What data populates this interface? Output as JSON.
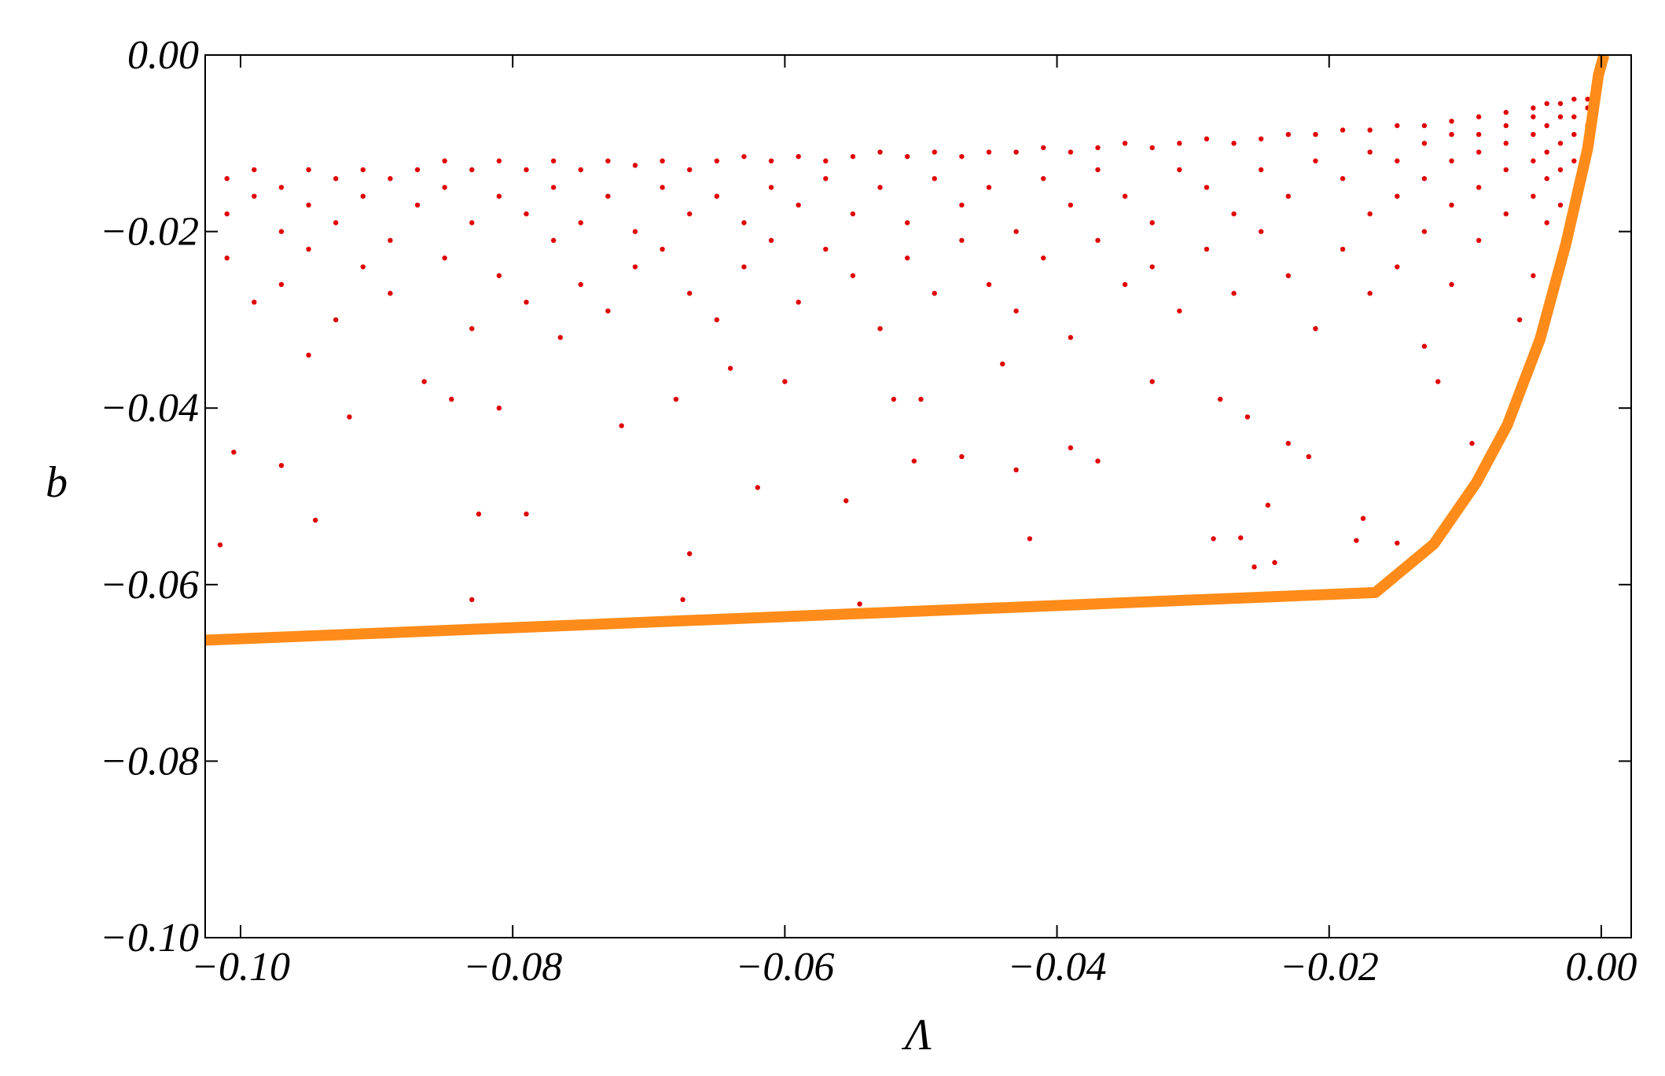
{
  "chart_data": {
    "type": "scatter",
    "x_label": "Λ",
    "y_label": "b",
    "xlim": [
      -0.1026,
      0.0022
    ],
    "ylim": [
      -0.1,
      0
    ],
    "xticks": [
      {
        "value": -0.1,
        "label": "−0.10"
      },
      {
        "value": -0.08,
        "label": "−0.08"
      },
      {
        "value": -0.06,
        "label": "−0.06"
      },
      {
        "value": -0.04,
        "label": "−0.04"
      },
      {
        "value": -0.02,
        "label": "−0.02"
      },
      {
        "value": 0,
        "label": "0.00"
      }
    ],
    "yticks": [
      {
        "value": -0.1,
        "label": "−0.10"
      },
      {
        "value": -0.08,
        "label": "−0.08"
      },
      {
        "value": -0.06,
        "label": "−0.06"
      },
      {
        "value": -0.04,
        "label": "−0.04"
      },
      {
        "value": -0.02,
        "label": "−0.02"
      },
      {
        "value": 0,
        "label": "0.00"
      }
    ],
    "series": [
      {
        "type": "scatter",
        "color": "#e00000",
        "x": [
          -0.101,
          -0.101,
          -0.101,
          -0.099,
          -0.099,
          -0.099,
          -0.097,
          -0.097,
          -0.097,
          -0.095,
          -0.095,
          -0.095,
          -0.093,
          -0.093,
          -0.093,
          -0.091,
          -0.091,
          -0.091,
          -0.089,
          -0.089,
          -0.089,
          -0.087,
          -0.087,
          -0.085,
          -0.085,
          -0.085,
          -0.083,
          -0.083,
          -0.083,
          -0.081,
          -0.081,
          -0.081,
          -0.079,
          -0.079,
          -0.079,
          -0.077,
          -0.077,
          -0.077,
          -0.075,
          -0.075,
          -0.075,
          -0.073,
          -0.073,
          -0.073,
          -0.071,
          -0.071,
          -0.071,
          -0.069,
          -0.069,
          -0.069,
          -0.067,
          -0.067,
          -0.067,
          -0.065,
          -0.065,
          -0.065,
          -0.063,
          -0.063,
          -0.063,
          -0.061,
          -0.061,
          -0.061,
          -0.059,
          -0.059,
          -0.059,
          -0.057,
          -0.057,
          -0.057,
          -0.055,
          -0.055,
          -0.055,
          -0.053,
          -0.053,
          -0.053,
          -0.051,
          -0.051,
          -0.051,
          -0.049,
          -0.049,
          -0.049,
          -0.047,
          -0.047,
          -0.047,
          -0.045,
          -0.045,
          -0.045,
          -0.043,
          -0.043,
          -0.043,
          -0.041,
          -0.041,
          -0.041,
          -0.039,
          -0.039,
          -0.039,
          -0.037,
          -0.037,
          -0.037,
          -0.035,
          -0.035,
          -0.035,
          -0.033,
          -0.033,
          -0.033,
          -0.031,
          -0.031,
          -0.031,
          -0.029,
          -0.029,
          -0.029,
          -0.027,
          -0.027,
          -0.027,
          -0.025,
          -0.025,
          -0.025,
          -0.023,
          -0.023,
          -0.023,
          -0.021,
          -0.021,
          -0.021,
          -0.019,
          -0.019,
          -0.019,
          -0.017,
          -0.017,
          -0.017,
          -0.017,
          -0.015,
          -0.015,
          -0.015,
          -0.015,
          -0.013,
          -0.013,
          -0.013,
          -0.013,
          -0.013,
          -0.011,
          -0.011,
          -0.011,
          -0.011,
          -0.011,
          -0.009,
          -0.009,
          -0.009,
          -0.009,
          -0.009,
          -0.007,
          -0.007,
          -0.007,
          -0.007,
          -0.007,
          -0.005,
          -0.005,
          -0.005,
          -0.005,
          -0.005,
          -0.005,
          -0.004,
          -0.004,
          -0.004,
          -0.004,
          -0.004,
          -0.003,
          -0.003,
          -0.003,
          -0.003,
          -0.003,
          -0.002,
          -0.002,
          -0.002,
          -0.002,
          -0.001,
          -0.001,
          -0.001,
          -0.001,
          -0.1015,
          -0.1005,
          -0.097,
          -0.0945,
          -0.083,
          -0.0825,
          -0.079,
          -0.0675,
          -0.067,
          -0.062,
          -0.0555,
          -0.0545,
          -0.042,
          -0.043,
          -0.0285,
          -0.0265,
          -0.0255,
          -0.024,
          -0.0245,
          -0.018,
          -0.015,
          -0.0175,
          -0.0215,
          -0.023,
          -0.0095,
          -0.047,
          -0.0505,
          -0.05,
          -0.039,
          -0.037,
          -0.072,
          -0.068,
          -0.081,
          -0.0845,
          -0.092,
          -0.095,
          -0.0865,
          -0.0765,
          -0.064,
          -0.06,
          -0.052,
          -0.044,
          -0.033,
          -0.028,
          -0.026,
          -0.012,
          -0.006
        ],
        "values": [
          -0.014,
          -0.018,
          -0.023,
          -0.013,
          -0.016,
          -0.028,
          -0.015,
          -0.02,
          -0.026,
          -0.013,
          -0.017,
          -0.022,
          -0.014,
          -0.019,
          -0.03,
          -0.013,
          -0.016,
          -0.024,
          -0.014,
          -0.021,
          -0.027,
          -0.013,
          -0.017,
          -0.012,
          -0.015,
          -0.023,
          -0.013,
          -0.019,
          -0.031,
          -0.012,
          -0.016,
          -0.025,
          -0.013,
          -0.018,
          -0.028,
          -0.012,
          -0.015,
          -0.021,
          -0.013,
          -0.019,
          -0.026,
          -0.012,
          -0.016,
          -0.029,
          -0.0125,
          -0.02,
          -0.024,
          -0.012,
          -0.015,
          -0.022,
          -0.013,
          -0.018,
          -0.027,
          -0.012,
          -0.016,
          -0.03,
          -0.0115,
          -0.019,
          -0.024,
          -0.012,
          -0.015,
          -0.021,
          -0.0115,
          -0.017,
          -0.028,
          -0.012,
          -0.014,
          -0.022,
          -0.0115,
          -0.018,
          -0.025,
          -0.011,
          -0.015,
          -0.031,
          -0.0115,
          -0.019,
          -0.023,
          -0.011,
          -0.014,
          -0.027,
          -0.0115,
          -0.017,
          -0.021,
          -0.011,
          -0.015,
          -0.026,
          -0.011,
          -0.02,
          -0.029,
          -0.0105,
          -0.014,
          -0.023,
          -0.011,
          -0.017,
          -0.032,
          -0.0105,
          -0.013,
          -0.021,
          -0.01,
          -0.016,
          -0.026,
          -0.0105,
          -0.019,
          -0.024,
          -0.01,
          -0.013,
          -0.029,
          -0.0095,
          -0.015,
          -0.022,
          -0.01,
          -0.018,
          -0.027,
          -0.0095,
          -0.013,
          -0.02,
          -0.009,
          -0.016,
          -0.025,
          -0.009,
          -0.012,
          -0.031,
          -0.0085,
          -0.014,
          -0.022,
          -0.0085,
          -0.011,
          -0.018,
          -0.027,
          -0.008,
          -0.012,
          -0.016,
          -0.024,
          -0.008,
          -0.01,
          -0.014,
          -0.02,
          -0.033,
          -0.0075,
          -0.009,
          -0.012,
          -0.017,
          -0.026,
          -0.007,
          -0.009,
          -0.011,
          -0.015,
          -0.021,
          -0.0065,
          -0.008,
          -0.01,
          -0.013,
          -0.018,
          -0.006,
          -0.007,
          -0.009,
          -0.012,
          -0.016,
          -0.025,
          -0.0055,
          -0.008,
          -0.011,
          -0.014,
          -0.019,
          -0.0055,
          -0.007,
          -0.01,
          -0.013,
          -0.017,
          -0.005,
          -0.007,
          -0.009,
          -0.012,
          -0.005,
          -0.006,
          -0.008,
          -0.01,
          -0.0555,
          -0.045,
          -0.0465,
          -0.0527,
          -0.0617,
          -0.052,
          -0.052,
          -0.0617,
          -0.0565,
          -0.049,
          -0.0505,
          -0.0622,
          -0.0548,
          -0.047,
          -0.0548,
          -0.0547,
          -0.058,
          -0.0575,
          -0.051,
          -0.055,
          -0.0553,
          -0.0525,
          -0.0455,
          -0.044,
          -0.044,
          -0.0455,
          -0.046,
          -0.039,
          -0.0445,
          -0.046,
          -0.042,
          -0.039,
          -0.04,
          -0.039,
          -0.041,
          -0.034,
          -0.037,
          -0.032,
          -0.0355,
          -0.037,
          -0.039,
          -0.035,
          -0.037,
          -0.039,
          -0.041,
          -0.037,
          -0.03
        ]
      },
      {
        "type": "line",
        "color": "#ff8c1a",
        "x": [
          -0.1026,
          -0.0166,
          -0.0123,
          -0.0092,
          -0.0069,
          -0.0045,
          -0.0026,
          -0.001,
          -0.0002,
          0.0002
        ],
        "values": [
          -0.0663,
          -0.0609,
          -0.0554,
          -0.0485,
          -0.0419,
          -0.0322,
          -0.0214,
          -0.0106,
          -0.0022,
          0
        ]
      }
    ]
  }
}
